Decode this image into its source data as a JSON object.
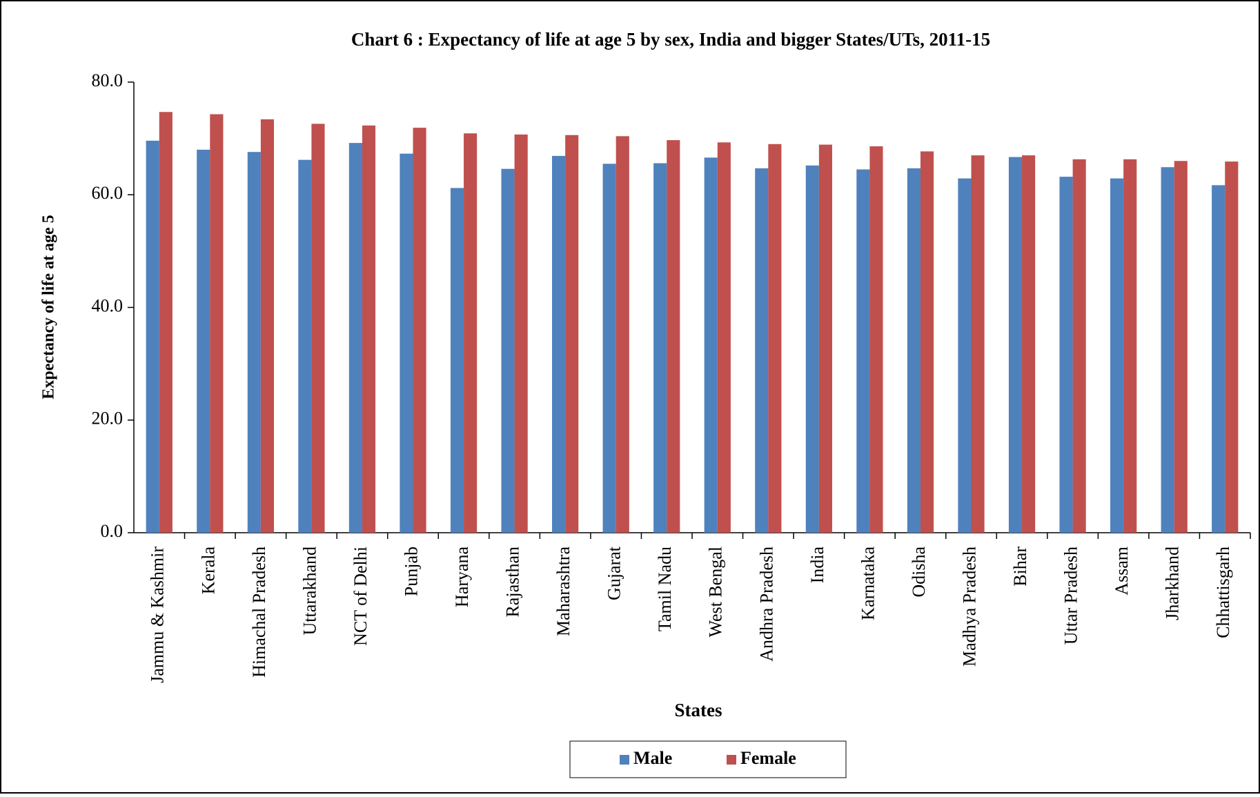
{
  "chart_data": {
    "type": "bar",
    "title": "Chart 6 : Expectancy of life at age 5 by sex, India and bigger States/UTs, 2011-15",
    "x_label": "States",
    "y_label": "Expectancy of life at age 5",
    "categories": [
      "Jammu & Kashmir",
      "Kerala",
      "Himachal Pradesh",
      "Uttarakhand",
      "NCT of Delhi",
      "Punjab",
      "Haryana",
      "Rajasthan",
      "Maharashtra",
      "Gujarat",
      "Tamil Nadu",
      "West Bengal",
      "Andhra Pradesh",
      "India",
      "Karnataka",
      "Odisha",
      "Madhya Pradesh",
      "Bihar",
      "Uttar Pradesh",
      "Assam",
      "Jharkhand",
      "Chhattisgarh"
    ],
    "series": [
      {
        "name": "Male",
        "color": "#4f81bd",
        "values": [
          69.6,
          68.0,
          67.6,
          66.2,
          69.2,
          67.3,
          61.2,
          64.6,
          66.9,
          65.5,
          65.6,
          66.6,
          64.7,
          65.2,
          64.5,
          64.7,
          62.9,
          66.7,
          63.2,
          62.9,
          64.9,
          61.7
        ]
      },
      {
        "name": "Female",
        "color": "#c0504d",
        "values": [
          74.7,
          74.3,
          73.4,
          72.6,
          72.3,
          71.9,
          70.9,
          70.7,
          70.6,
          70.4,
          69.7,
          69.3,
          69.0,
          68.9,
          68.6,
          67.7,
          67.0,
          67.0,
          66.3,
          66.3,
          66.0,
          65.9
        ]
      }
    ],
    "ylim": [
      0,
      80
    ],
    "yticks": [
      {
        "value": 0,
        "label": "0.0"
      },
      {
        "value": 20,
        "label": "20.0"
      },
      {
        "value": 40,
        "label": "40.0"
      },
      {
        "value": 60,
        "label": "60.0"
      },
      {
        "value": 80,
        "label": "80.0"
      }
    ],
    "legend": "bottom",
    "grid": false
  }
}
